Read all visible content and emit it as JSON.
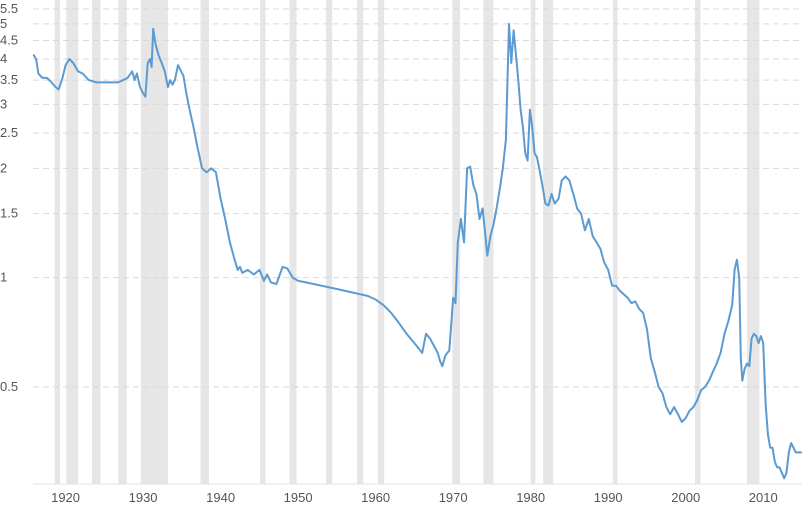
{
  "colors": {
    "line": "#5b9bd1",
    "band": "#e6e6e6",
    "grid": "#d9d9d9",
    "text": "#555555"
  },
  "chart_data": {
    "type": "line",
    "title": "",
    "xlabel": "",
    "ylabel": "",
    "y_scale": "log",
    "xlim": [
      1915.8,
      2015.0
    ],
    "ylim": [
      0.27,
      5.6
    ],
    "grid": "horizontal dashed",
    "yticks": [
      {
        "label": "0.5",
        "value": 0.5
      },
      {
        "label": "1",
        "value": 1
      },
      {
        "label": "1.5",
        "value": 1.5
      },
      {
        "label": "2",
        "value": 2
      },
      {
        "label": "2.5",
        "value": 2.5
      },
      {
        "label": "3",
        "value": 3
      },
      {
        "label": "3.5",
        "value": 3.5
      },
      {
        "label": "4",
        "value": 4
      },
      {
        "label": "4.5",
        "value": 4.5
      },
      {
        "label": "5",
        "value": 5
      },
      {
        "label": "5.5",
        "value": 5.5
      }
    ],
    "xticks": [
      {
        "label": "1920",
        "value": 1920
      },
      {
        "label": "1930",
        "value": 1930
      },
      {
        "label": "1940",
        "value": 1940
      },
      {
        "label": "1950",
        "value": 1950
      },
      {
        "label": "1960",
        "value": 1960
      },
      {
        "label": "1970",
        "value": 1970
      },
      {
        "label": "1980",
        "value": 1980
      },
      {
        "label": "1990",
        "value": 1990
      },
      {
        "label": "2000",
        "value": 2000
      },
      {
        "label": "2010",
        "value": 2010
      }
    ],
    "shaded_periods": [
      [
        1918.6,
        1919.3
      ],
      [
        1920.1,
        1921.6
      ],
      [
        1923.4,
        1924.5
      ],
      [
        1926.8,
        1927.9
      ],
      [
        1929.7,
        1933.2
      ],
      [
        1937.4,
        1938.5
      ],
      [
        1945.1,
        1945.8
      ],
      [
        1948.9,
        1949.8
      ],
      [
        1953.6,
        1954.4
      ],
      [
        1957.6,
        1958.4
      ],
      [
        1960.3,
        1961.1
      ],
      [
        1969.9,
        1970.9
      ],
      [
        1973.9,
        1975.2
      ],
      [
        1980.0,
        1980.6
      ],
      [
        1981.6,
        1982.9
      ],
      [
        1990.6,
        1991.2
      ],
      [
        2001.2,
        2001.9
      ],
      [
        2007.9,
        2009.5
      ]
    ],
    "series": [
      {
        "x": [
          1915.9,
          1916.2,
          1916.5,
          1917.0,
          1917.6,
          1918.2,
          1918.7,
          1919.1,
          1919.6,
          1920.0,
          1920.5,
          1921.0,
          1921.6,
          1922.2,
          1923.0,
          1924.0,
          1925.0,
          1926.0,
          1926.8,
          1927.4,
          1928.0,
          1928.6,
          1928.9,
          1929.2,
          1929.6,
          1929.9,
          1930.3,
          1930.6,
          1930.9,
          1931.1,
          1931.3,
          1931.6,
          1932.0,
          1932.4,
          1932.8,
          1933.2,
          1933.5,
          1933.8,
          1934.1,
          1934.5,
          1934.9,
          1935.2,
          1935.6,
          1936.0,
          1936.5,
          1937.0,
          1937.6,
          1938.2,
          1938.8,
          1939.4,
          1940.0,
          1940.6,
          1941.2,
          1941.8,
          1942.2,
          1942.5,
          1942.8,
          1943.5,
          1944.3,
          1945.0,
          1945.6,
          1946.0,
          1946.5,
          1947.2,
          1948.0,
          1948.6,
          1949.3,
          1950.0,
          1951.0,
          1953.0,
          1955.0,
          1957.0,
          1958.0,
          1959.0,
          1960.0,
          1961.0,
          1962.0,
          1963.0,
          1964.0,
          1965.0,
          1966.0,
          1966.5,
          1967.0,
          1967.5,
          1968.0,
          1968.3,
          1968.6,
          1969.0,
          1969.5,
          1970.0,
          1970.3,
          1970.6,
          1971.0,
          1971.4,
          1971.8,
          1972.2,
          1972.6,
          1973.0,
          1973.4,
          1973.8,
          1974.1,
          1974.4,
          1974.8,
          1975.2,
          1975.6,
          1976.0,
          1976.4,
          1976.8,
          1977.2,
          1977.5,
          1977.8,
          1978.1,
          1978.4,
          1978.7,
          1979.0,
          1979.3,
          1979.6,
          1979.9,
          1980.2,
          1980.5,
          1980.8,
          1981.1,
          1981.5,
          1981.9,
          1982.3,
          1982.7,
          1983.1,
          1983.6,
          1984.0,
          1984.5,
          1985.0,
          1985.5,
          1986.0,
          1986.5,
          1987.0,
          1987.5,
          1988.0,
          1988.5,
          1989.0,
          1989.5,
          1990.0,
          1990.5,
          1991.0,
          1991.5,
          1992.0,
          1992.5,
          1993.0,
          1993.5,
          1994.0,
          1994.5,
          1995.0,
          1995.5,
          1996.0,
          1996.5,
          1997.0,
          1997.5,
          1998.0,
          1998.5,
          1999.0,
          1999.5,
          2000.0,
          2000.5,
          2001.0,
          2001.5,
          2002.0,
          2002.5,
          2003.0,
          2003.5,
          2004.0,
          2004.5,
          2005.0,
          2005.5,
          2006.0,
          2006.3,
          2006.6,
          2006.9,
          2007.1,
          2007.3,
          2007.6,
          2007.9,
          2008.2,
          2008.5,
          2008.8,
          2009.1,
          2009.4,
          2009.7,
          2010.0,
          2010.3,
          2010.6,
          2010.9,
          2011.2,
          2011.5,
          2011.8,
          2012.1,
          2012.4,
          2012.7,
          2013.0,
          2013.3,
          2013.6,
          2013.9,
          2014.2,
          2014.6,
          2014.9
        ],
        "values": [
          4.1,
          4.0,
          3.65,
          3.55,
          3.55,
          3.45,
          3.35,
          3.3,
          3.55,
          3.85,
          4.0,
          3.9,
          3.7,
          3.65,
          3.5,
          3.45,
          3.45,
          3.45,
          3.45,
          3.5,
          3.55,
          3.7,
          3.5,
          3.65,
          3.35,
          3.25,
          3.15,
          3.9,
          4.0,
          3.8,
          4.85,
          4.4,
          4.1,
          3.9,
          3.7,
          3.35,
          3.5,
          3.4,
          3.5,
          3.85,
          3.7,
          3.6,
          3.2,
          2.9,
          2.6,
          2.3,
          2.0,
          1.95,
          2.0,
          1.95,
          1.65,
          1.45,
          1.25,
          1.12,
          1.05,
          1.07,
          1.03,
          1.05,
          1.02,
          1.05,
          0.98,
          1.02,
          0.97,
          0.96,
          1.07,
          1.06,
          1.0,
          0.98,
          0.97,
          0.95,
          0.93,
          0.91,
          0.9,
          0.89,
          0.87,
          0.84,
          0.8,
          0.75,
          0.7,
          0.66,
          0.62,
          0.7,
          0.68,
          0.65,
          0.62,
          0.59,
          0.57,
          0.61,
          0.63,
          0.88,
          0.85,
          1.25,
          1.45,
          1.25,
          2.0,
          2.02,
          1.8,
          1.7,
          1.45,
          1.55,
          1.35,
          1.15,
          1.3,
          1.4,
          1.55,
          1.75,
          2.0,
          2.4,
          5.0,
          3.9,
          4.8,
          4.1,
          3.5,
          2.9,
          2.6,
          2.2,
          2.1,
          2.9,
          2.6,
          2.2,
          2.15,
          2.0,
          1.8,
          1.6,
          1.58,
          1.7,
          1.6,
          1.65,
          1.85,
          1.9,
          1.85,
          1.7,
          1.55,
          1.5,
          1.35,
          1.45,
          1.3,
          1.25,
          1.2,
          1.1,
          1.05,
          0.95,
          0.95,
          0.92,
          0.9,
          0.88,
          0.85,
          0.86,
          0.82,
          0.8,
          0.72,
          0.6,
          0.55,
          0.5,
          0.48,
          0.44,
          0.42,
          0.44,
          0.42,
          0.4,
          0.41,
          0.43,
          0.44,
          0.46,
          0.49,
          0.5,
          0.52,
          0.55,
          0.58,
          0.62,
          0.7,
          0.76,
          0.84,
          1.05,
          1.12,
          1.0,
          0.6,
          0.52,
          0.56,
          0.58,
          0.57,
          0.68,
          0.7,
          0.69,
          0.66,
          0.69,
          0.66,
          0.45,
          0.37,
          0.34,
          0.34,
          0.31,
          0.3,
          0.3,
          0.29,
          0.28,
          0.29,
          0.33,
          0.35,
          0.34,
          0.33,
          0.33,
          0.33
        ]
      }
    ]
  }
}
